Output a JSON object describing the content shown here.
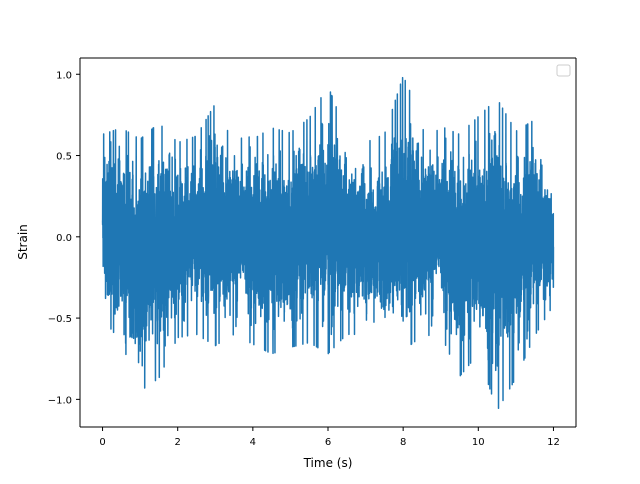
{
  "chart_data": {
    "type": "line",
    "title": "",
    "xlabel": "Time (s)",
    "ylabel": "Strain",
    "xlim": [
      -0.6,
      12.6
    ],
    "ylim": [
      -1.17,
      1.1
    ],
    "xticks": [
      0,
      2,
      4,
      6,
      8,
      10,
      12
    ],
    "yticks": [
      -1.0,
      -0.5,
      0.0,
      0.5,
      1.0
    ],
    "xtick_labels": [
      "0",
      "2",
      "4",
      "6",
      "8",
      "10",
      "12"
    ],
    "ytick_labels": [
      "−1.0",
      "−0.5",
      "0.0",
      "0.5",
      "1.0"
    ],
    "legend": {
      "placement": "top-right",
      "entries": []
    },
    "grid": false,
    "series": [
      {
        "color": "#1f77b4",
        "x_start": 0,
        "x_end": 12,
        "num_points": 6000,
        "y_min": -1.07,
        "y_max": 1.0,
        "typical_range": [
          -0.5,
          0.5
        ],
        "envelope": {
          "x": [
            0,
            0.5,
            1,
            1.5,
            2,
            2.5,
            3,
            3.5,
            4,
            4.5,
            5,
            5.5,
            6,
            6.5,
            7,
            7.5,
            8,
            8.5,
            9,
            9.5,
            10,
            10.5,
            11,
            11.5,
            12
          ],
          "upper": [
            0.63,
            0.67,
            0.6,
            0.7,
            0.58,
            0.62,
            0.82,
            0.67,
            0.6,
            0.67,
            0.64,
            0.73,
            0.93,
            0.63,
            0.58,
            0.63,
            0.99,
            0.73,
            0.68,
            0.63,
            0.74,
            0.85,
            0.65,
            0.72,
            0.35
          ],
          "lower": [
            -0.5,
            -0.65,
            -0.95,
            -0.87,
            -0.62,
            -0.6,
            -0.67,
            -0.6,
            -0.66,
            -0.72,
            -0.68,
            -0.65,
            -0.72,
            -0.6,
            -0.6,
            -0.67,
            -0.7,
            -0.61,
            -0.6,
            -0.86,
            -0.72,
            -1.07,
            -0.87,
            -0.61,
            -0.42
          ]
        }
      }
    ]
  }
}
